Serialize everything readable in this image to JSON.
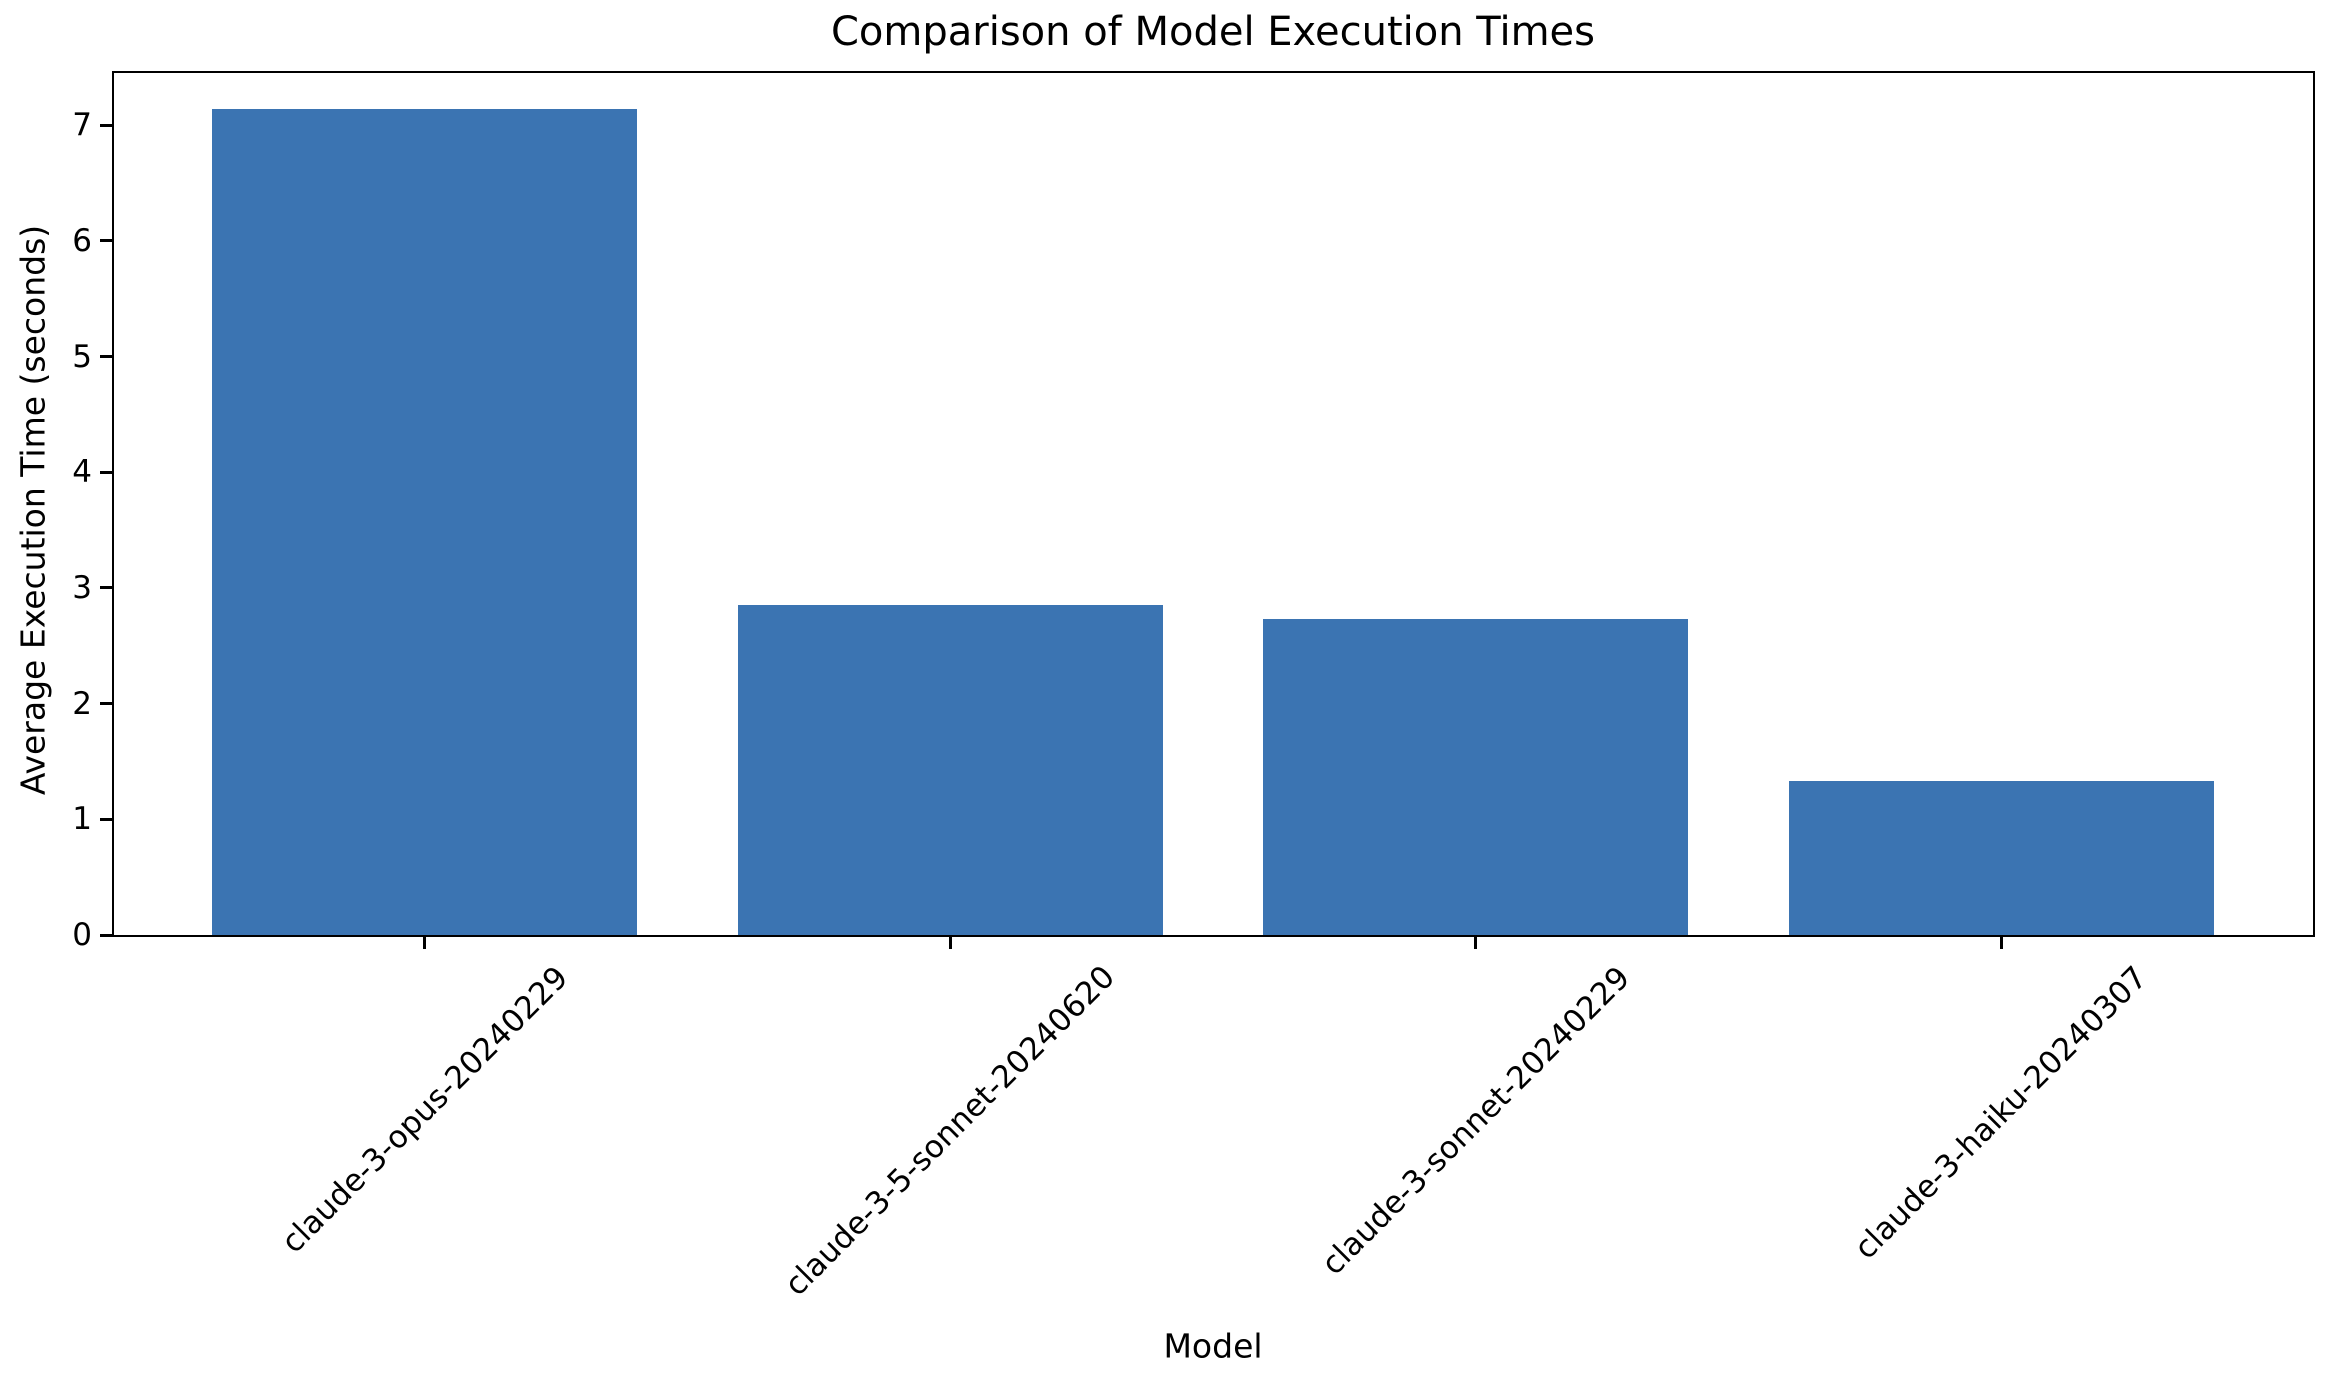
{
  "chart_data": {
    "type": "bar",
    "title": "Comparison of Model Execution Times",
    "xlabel": "Model",
    "ylabel": "Average Execution Time (seconds)",
    "categories": [
      "claude-3-opus-20240229",
      "claude-3-5-sonnet-20240620",
      "claude-3-sonnet-20240229",
      "claude-3-haiku-20240307"
    ],
    "values": [
      7.14,
      2.85,
      2.73,
      1.33
    ],
    "ylim": [
      0,
      7.45
    ],
    "yticks": [
      0,
      1,
      2,
      3,
      4,
      5,
      6,
      7
    ],
    "x_tick_label_rotation_deg": 45,
    "bar_color": "#3b74b2",
    "axis_color": "#000000",
    "background_color": "#ffffff",
    "grid": false,
    "legend_position": "none"
  }
}
